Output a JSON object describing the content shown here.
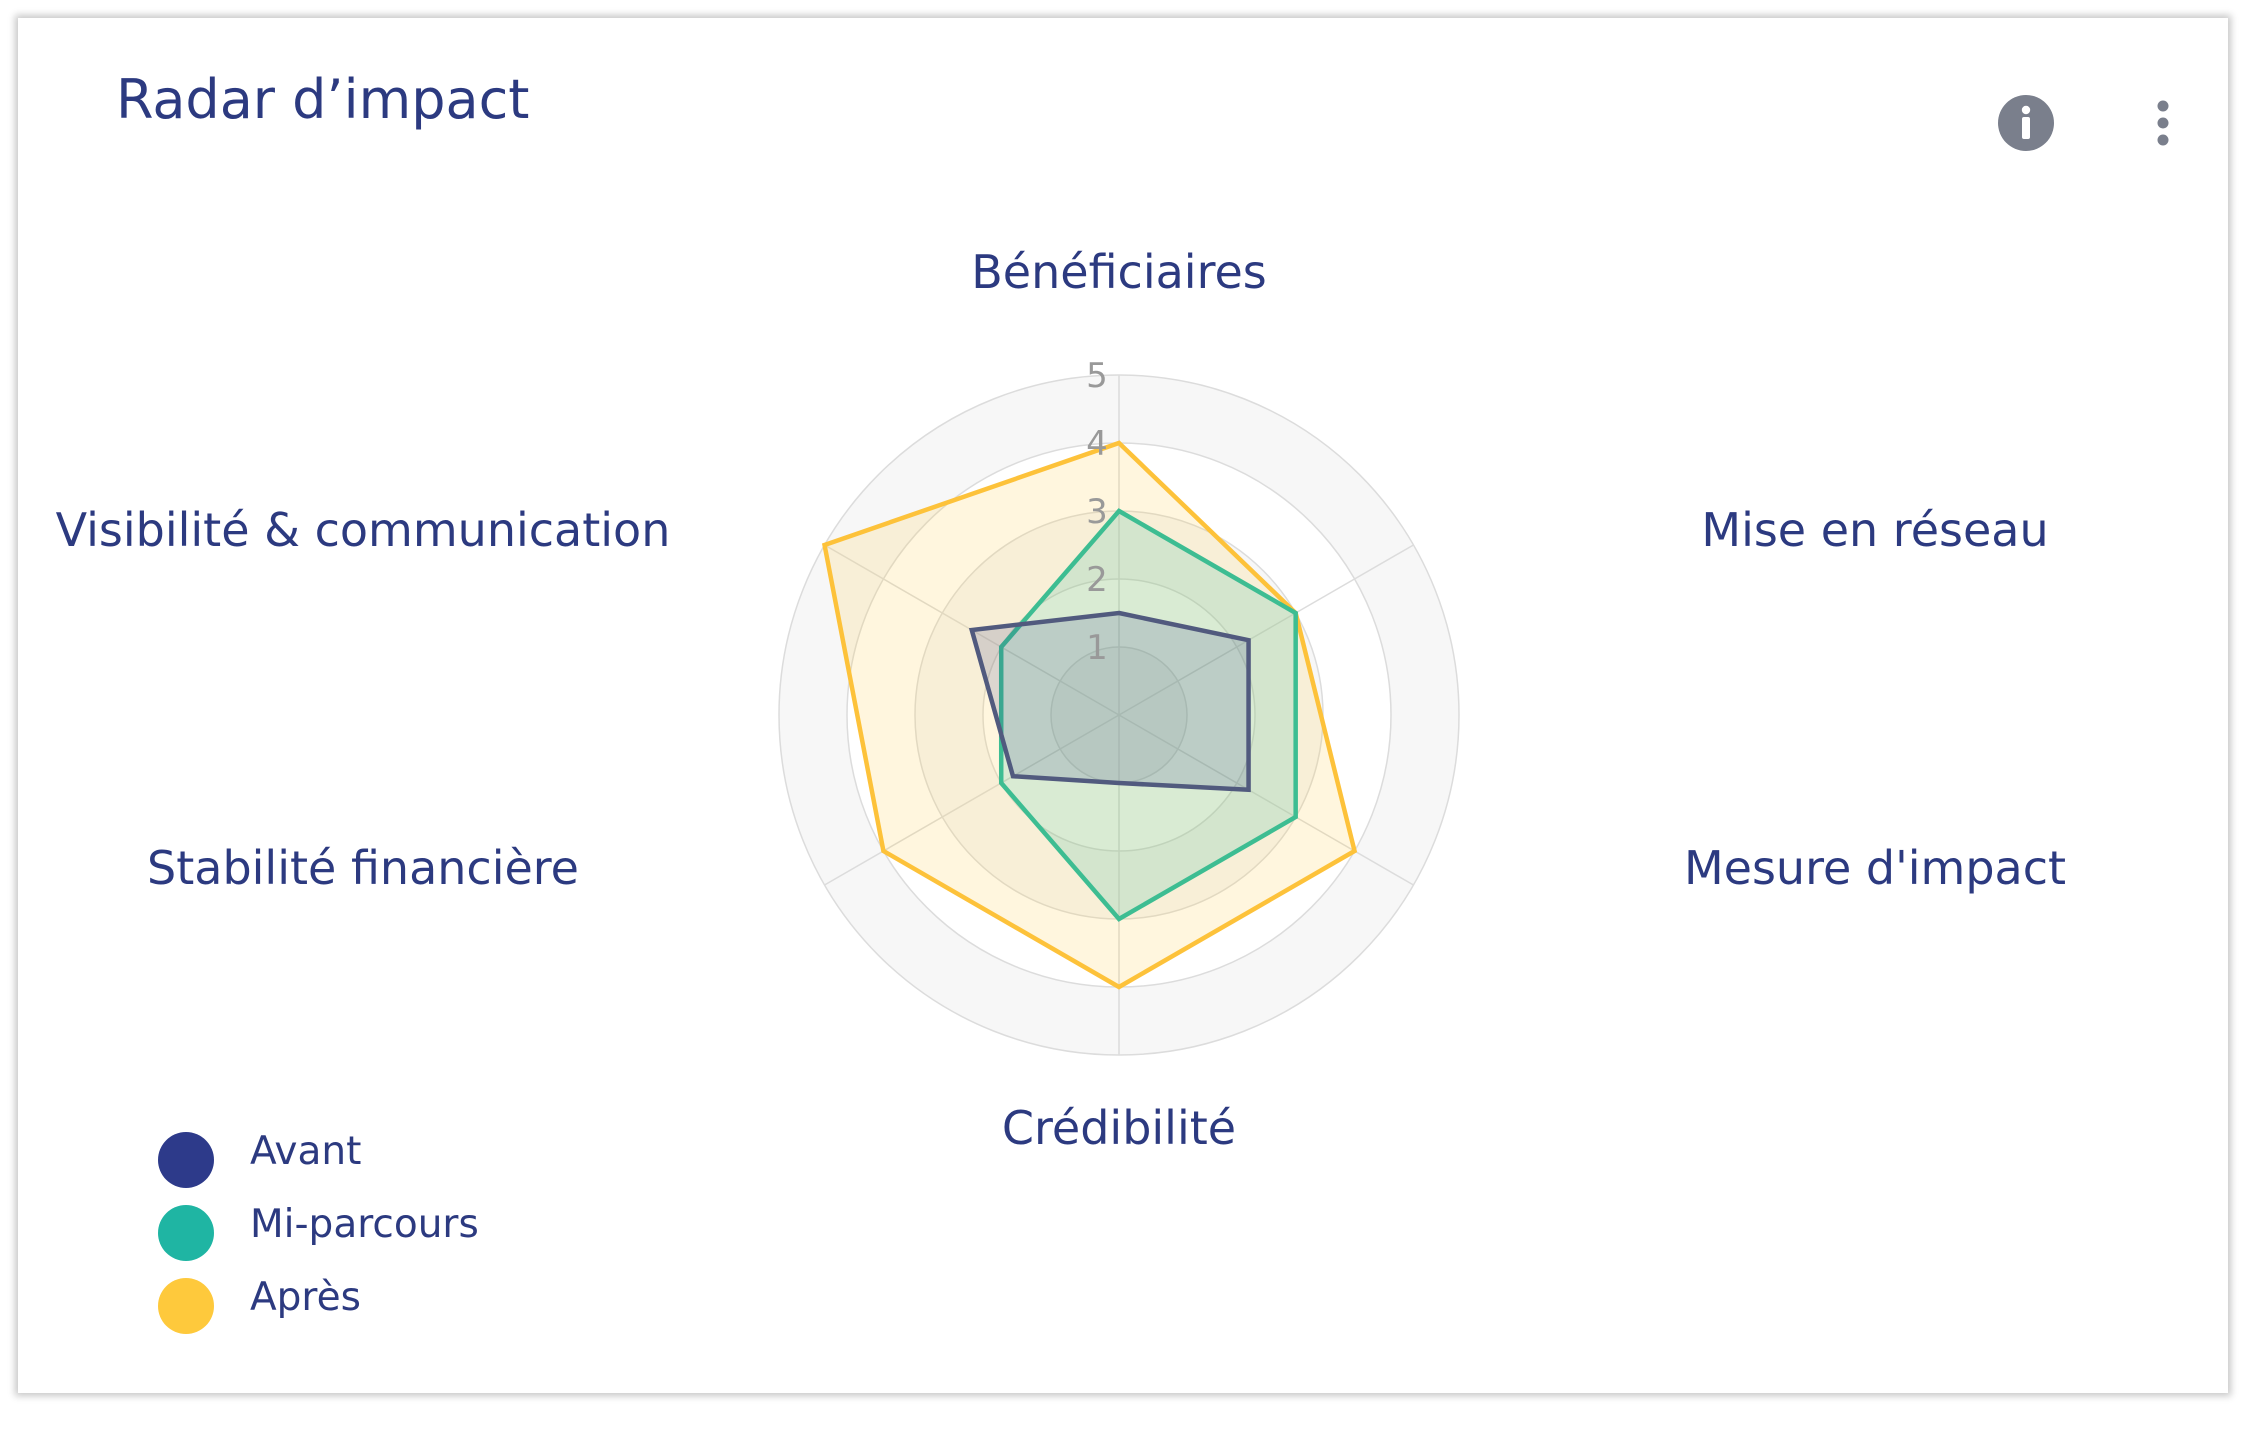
{
  "card": {
    "title": "Radar d’impact"
  },
  "icons": {
    "info": "info-circle-icon",
    "more": "more-vertical-icon"
  },
  "colors": {
    "title": "#2c3a80",
    "icon": "#7a7f8c",
    "grid": "#dcdcdc",
    "band": "#f7f7f7"
  },
  "chart_data": {
    "type": "radar",
    "categories": [
      "Bénéficiaires",
      "Mise en réseau",
      "Mesure d'impact",
      "Crédibilité",
      "Stabilité financière",
      "Visibilité & communication"
    ],
    "rlim": [
      0,
      5
    ],
    "ticks": [
      "1",
      "2",
      "3",
      "4",
      "5"
    ],
    "series": [
      {
        "name": "Avant",
        "color": "#2d3a8a",
        "line": "#515a7e",
        "values": [
          1.5,
          2.2,
          2.2,
          1.0,
          1.8,
          2.5
        ]
      },
      {
        "name": "Mi-parcours",
        "color": "#1fb5a3",
        "line": "#3dbd92",
        "values": [
          3.0,
          3.0,
          3.0,
          3.0,
          2.0,
          2.0
        ]
      },
      {
        "name": "Après",
        "color": "#fec93c",
        "line": "#fdc23a",
        "values": [
          4.0,
          3.0,
          4.0,
          4.0,
          4.0,
          5.0
        ]
      }
    ],
    "legend_position": "bottom-left"
  }
}
